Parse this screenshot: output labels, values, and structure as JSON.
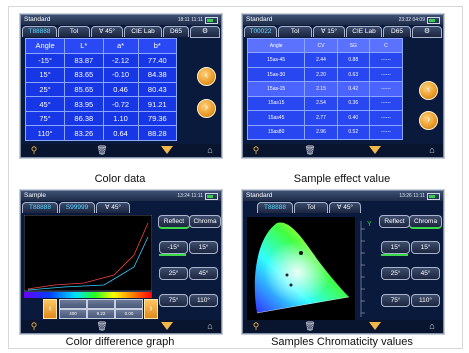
{
  "colors": {
    "panel_bg": "#0a1a3d",
    "table_bg": "#1736e6",
    "accent_orange": "#f2b74a",
    "select_green": "#3bd94a"
  },
  "panel1": {
    "title": "Standard",
    "time": "18:11 11:11",
    "tabs": [
      "T88888",
      "Tol",
      "∀ 45°",
      "CIE Lab",
      "D65"
    ],
    "headers": [
      "Angle",
      "L*",
      "a*",
      "b*"
    ],
    "rows": [
      [
        "-15°",
        "83.87",
        "-2.12",
        "77.40"
      ],
      [
        "15°",
        "83.65",
        "-0.10",
        "84.38"
      ],
      [
        "25°",
        "85.65",
        "0.46",
        "80.43"
      ],
      [
        "45°",
        "83.95",
        "-0.72",
        "91.21"
      ],
      [
        "75°",
        "86.38",
        "1.10",
        "79.36"
      ],
      [
        "110°",
        "83.26",
        "0.64",
        "88.28"
      ]
    ],
    "caption": "Color data"
  },
  "panel2": {
    "title": "Standard",
    "time": "23:32 04:09",
    "tabs": [
      "T00022",
      "Tol",
      "∀ 15°",
      "CIE Lab",
      "D65"
    ],
    "headers": [
      "Angle",
      "CV",
      "SG",
      "C"
    ],
    "rows": [
      [
        "15as-45",
        "2.44",
        "0.88",
        "------"
      ],
      [
        "15as-30",
        "2.20",
        "0.63",
        "------"
      ],
      [
        "15as-15",
        "2.15",
        "0.42",
        "------"
      ],
      [
        "15as15",
        "2.54",
        "0.36",
        "------"
      ],
      [
        "15as45",
        "2.77",
        "0.40",
        "------"
      ],
      [
        "15as80",
        "2.96",
        "0.52",
        "------"
      ]
    ],
    "caption": "Sample effect value"
  },
  "panel3": {
    "title": "Sample",
    "time": "13:24 11:11",
    "tabs": [
      "T88888",
      "S99999",
      "∀ 45°"
    ],
    "buttons": [
      "Reflect",
      "Chroma",
      "-15°",
      "15°",
      "25°",
      "45°",
      "75°",
      "110°"
    ],
    "readout": {
      "labels": [
        "400",
        "9.22",
        "0.00"
      ]
    },
    "caption": "Color difference graph"
  },
  "panel4": {
    "title": "Standard",
    "time": "13:26 11:11",
    "tabs": [
      "T88888",
      "Tol",
      "∀ 45°"
    ],
    "buttons": [
      "Reflect",
      "Chroma",
      "15°",
      "15°",
      "25°",
      "45°",
      "75°",
      "110°"
    ],
    "axis_label": "Y",
    "caption": "Samples Chromaticity values"
  },
  "icons": [
    "search-icon",
    "trash-icon",
    "down-triangle-icon",
    "home-icon",
    "gear-icon",
    "left-arrow-icon",
    "right-arrow-icon"
  ]
}
